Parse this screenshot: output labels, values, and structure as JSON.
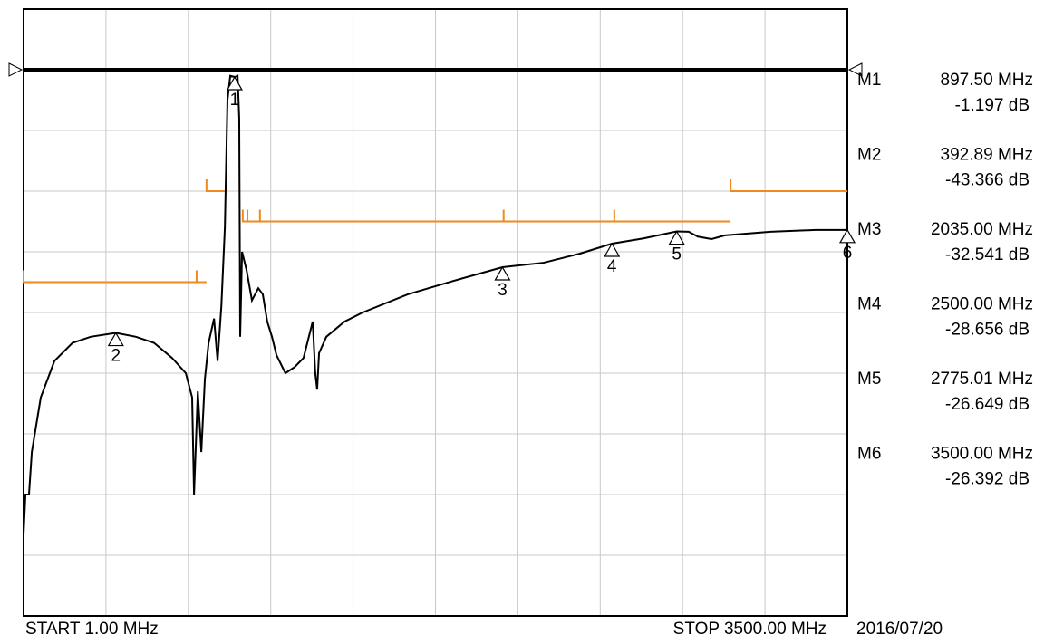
{
  "chart_data": {
    "type": "line",
    "xlim": [
      1,
      3500
    ],
    "ylim": [
      -90,
      10
    ],
    "xticks": [
      1,
      350.9,
      700.8,
      1050.7,
      1400.6,
      1750.5,
      2100.4,
      2450.3,
      2800.2,
      3150.1,
      3500
    ],
    "yticks": [
      -90,
      -80,
      -70,
      -60,
      -50,
      -40,
      -30,
      -20,
      -10,
      0,
      10
    ],
    "grid": true,
    "ref_level": 0,
    "ref_color": "#000000",
    "trace": {
      "color": "#000000",
      "x": [
        1,
        9,
        24,
        36,
        74,
        132,
        209,
        286,
        392.89,
        478,
        555,
        632,
        690,
        717,
        725,
        741,
        756,
        771,
        787,
        810,
        825,
        841,
        856,
        867,
        879,
        897.5,
        910,
        917,
        921,
        929,
        948,
        971,
        998,
        1017,
        1036,
        1056,
        1075,
        1113,
        1152,
        1190,
        1229,
        1240,
        1248,
        1256,
        1287,
        1364,
        1441,
        1633,
        1826,
        2035,
        2210,
        2364,
        2500,
        2634,
        2775.01,
        2826,
        2865,
        2923,
        2980,
        3173,
        3365,
        3500
      ],
      "values": [
        -76.6,
        -70,
        -70,
        -63,
        -54,
        -48,
        -45,
        -44,
        -43.366,
        -44,
        -45,
        -47.5,
        -50,
        -54,
        -70,
        -53,
        -63,
        -51,
        -45,
        -41,
        -48,
        -39,
        -26,
        -5,
        -1,
        -1.197,
        -1,
        -8,
        -44,
        -30,
        -33,
        -38,
        -36,
        -37,
        -41.5,
        -44,
        -47,
        -50,
        -49,
        -47.5,
        -41.5,
        -50,
        -52.7,
        -46.7,
        -44,
        -41.5,
        -40,
        -37,
        -34.8,
        -32.541,
        -31.8,
        -30.3,
        -28.656,
        -27.8,
        -26.649,
        -26.7,
        -27.5,
        -27.9,
        -27.3,
        -26.7,
        -26.4,
        -26.392
      ]
    },
    "limit_color": "#f08a1c",
    "limit_segments": [
      {
        "x": [
          1,
          736
        ],
        "y": -35
      },
      {
        "x": [
          736,
          778
        ],
        "y": -35
      },
      {
        "x": [
          778,
          855
        ],
        "y": -20
      },
      {
        "x": [
          932,
          952
        ],
        "y": -25
      },
      {
        "x": [
          952,
          1005
        ],
        "y": -25
      },
      {
        "x": [
          1005,
          2040
        ],
        "y": -25
      },
      {
        "x": [
          2040,
          2510
        ],
        "y": -25
      },
      {
        "x": [
          2510,
          3004
        ],
        "y": -25
      },
      {
        "x": [
          3004,
          3500
        ],
        "y": -20
      }
    ],
    "markers": [
      {
        "name": "M1",
        "number": "1",
        "x": 897.5,
        "y": -1.197,
        "freq_label": "897.50 MHz",
        "value_label": "-1.197 dB"
      },
      {
        "name": "M2",
        "number": "2",
        "x": 392.89,
        "y": -43.366,
        "freq_label": "392.89 MHz",
        "value_label": "-43.366 dB"
      },
      {
        "name": "M3",
        "number": "3",
        "x": 2035,
        "y": -32.541,
        "freq_label": "2035.00 MHz",
        "value_label": "-32.541 dB"
      },
      {
        "name": "M4",
        "number": "4",
        "x": 2500,
        "y": -28.656,
        "freq_label": "2500.00 MHz",
        "value_label": "-28.656 dB"
      },
      {
        "name": "M5",
        "number": "5",
        "x": 2775.01,
        "y": -26.649,
        "freq_label": "2775.01 MHz",
        "value_label": "-26.649 dB"
      },
      {
        "name": "M6",
        "number": "6",
        "x": 3500,
        "y": -26.392,
        "freq_label": "3500.00 MHz",
        "value_label": "-26.392 dB"
      }
    ],
    "start_label": "START 1.00 MHz",
    "stop_label": "STOP 3500.00 MHz",
    "date": "2016/07/20"
  }
}
